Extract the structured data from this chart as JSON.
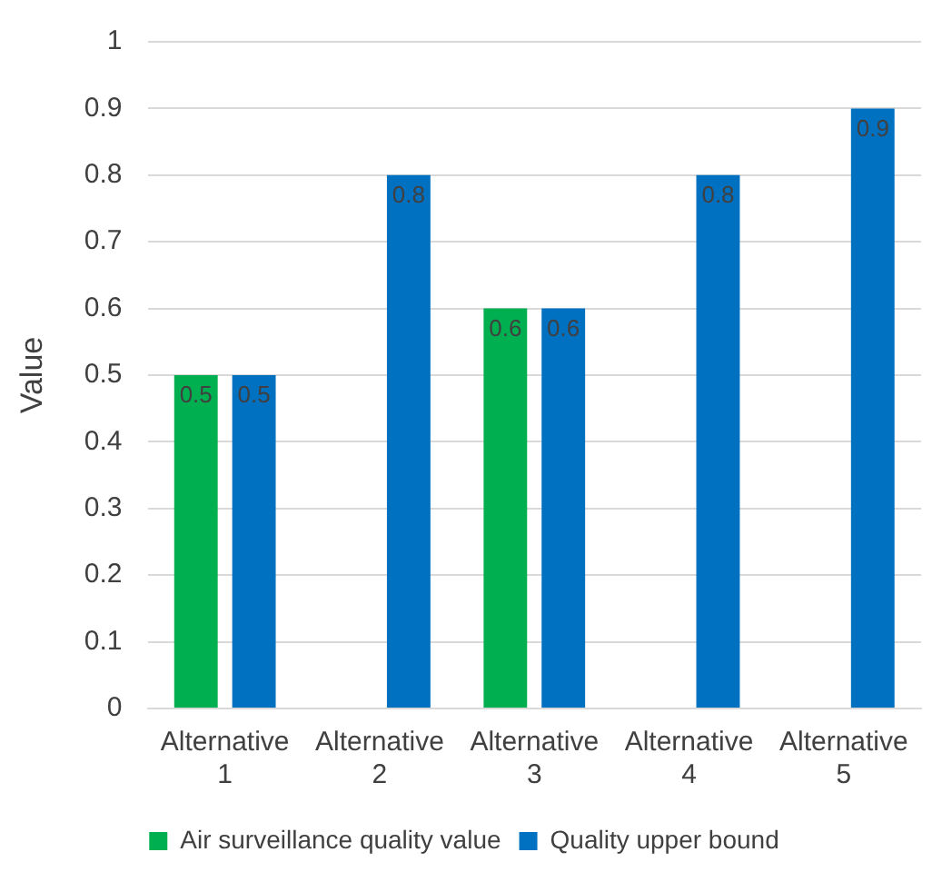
{
  "chart_data": {
    "type": "bar",
    "ylabel": "Value",
    "categories": [
      "Alternative 1",
      "Alternative 2",
      "Alternative 3",
      "Alternative 4",
      "Alternative 5"
    ],
    "series": [
      {
        "name": "Air surveillance quality value",
        "color": "#00b050",
        "values": [
          0.5,
          null,
          0.6,
          null,
          null
        ]
      },
      {
        "name": "Quality upper bound",
        "color": "#0070c0",
        "values": [
          0.5,
          0.8,
          0.6,
          0.8,
          0.9
        ]
      }
    ],
    "ylim": [
      0,
      1
    ],
    "yticks": [
      0,
      0.1,
      0.2,
      0.3,
      0.4,
      0.5,
      0.6,
      0.7,
      0.8,
      0.9,
      1
    ],
    "grid": "y",
    "legend": "bottom",
    "data_labels": true
  }
}
